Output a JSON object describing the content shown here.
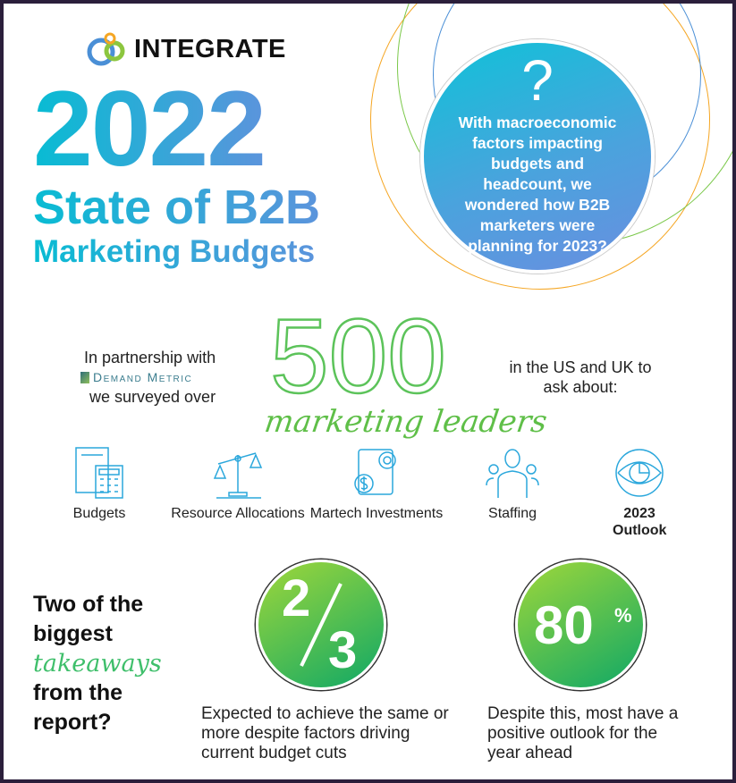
{
  "brand": {
    "name": "INTEGRATE"
  },
  "header": {
    "year": "2022",
    "title_line1": "State of B2B",
    "title_line2": "Marketing Budgets"
  },
  "question": {
    "icon": "question-mark-icon",
    "symbol": "?",
    "text": "With macroeconomic factors impacting budgets and headcount, we wondered how B2B marketers were planning for 2023?"
  },
  "survey": {
    "partner_intro": "In partnership with",
    "partner": "Demand Metric",
    "surveyed": "we surveyed over",
    "count": "500",
    "audience": "marketing leaders",
    "region": "in the US and UK to ask about:"
  },
  "topics": [
    {
      "label": "Budgets",
      "icon": "budget-calculator-icon"
    },
    {
      "label": "Resource Allocations",
      "icon": "scale-icon"
    },
    {
      "label": "Martech Investments",
      "icon": "gear-dollar-icon"
    },
    {
      "label": "Staffing",
      "icon": "people-icon"
    },
    {
      "label": "2023 Outlook",
      "icon": "eye-chart-icon"
    }
  ],
  "takeaways": {
    "line1": "Two of the",
    "line2": "biggest",
    "script": "takeaways",
    "line3": "from the",
    "line4": "report?",
    "items": [
      {
        "numerator": "2",
        "denominator": "3",
        "text": "Expected to achieve the same or more despite factors driving current budget cuts"
      },
      {
        "value": "80",
        "unit": "%",
        "text": "Despite this, most have a positive outlook for the year ahead"
      }
    ]
  },
  "colors": {
    "cyan": "#08bcd3",
    "blue": "#5b94dc",
    "green": "#0fa866",
    "lime": "#9fd73a",
    "orange": "#f5a623",
    "frame": "#2b1f3b"
  }
}
